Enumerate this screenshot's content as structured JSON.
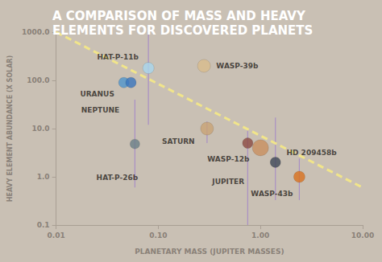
{
  "chart_data": {
    "type": "scatter",
    "title": "A COMPARISON OF MASS AND HEAVY\nELEMENTS FOR DISCOVERED PLANETS",
    "x_label": "PLANETARY MASS (JUPITER MASSES)",
    "y_label": "HEAVY ELEMENT ABUNDANCE (X SOLAR)",
    "log": true,
    "grid": false,
    "xlim": [
      0.01,
      10
    ],
    "ylim": [
      0.1,
      1000
    ],
    "xticks": [
      0.01,
      {
        "value": 0.1,
        "label": "0.10"
      },
      {
        "value": 1,
        "label": "1.00"
      },
      {
        "value": 10,
        "label": "10.00"
      }
    ],
    "yticks": [
      0.1,
      {
        "value": 1,
        "label": "1.0"
      },
      {
        "value": 10,
        "label": "10.0"
      },
      {
        "value": 100,
        "label": "100.0"
      },
      {
        "value": 1000,
        "label": "1000.0"
      }
    ],
    "points": [
      {
        "name": "HAT-P-11b",
        "x": 0.08,
        "y": 180,
        "color": "#a9d6ee",
        "error": [
          12,
          1000
        ]
      },
      {
        "name": "URANUS",
        "x": 0.046,
        "y": 90,
        "color": "#4f93cc"
      },
      {
        "name": "NEPTUNE",
        "x": 0.054,
        "y": 90,
        "color": "#3a74bd"
      },
      {
        "name": "HAT-P-26b",
        "x": 0.059,
        "y": 4.8,
        "color": "#6b7f88",
        "error": [
          0.6,
          40
        ]
      },
      {
        "name": "WASP-39b",
        "x": 0.28,
        "y": 200,
        "color": "#d9bb8c"
      },
      {
        "name": "SATURN",
        "x": 0.3,
        "y": 10,
        "color": "#c9a275",
        "error": [
          5,
          14
        ]
      },
      {
        "name": "WASP-12b",
        "x": 0.75,
        "y": 5,
        "color": "#8c4a42",
        "error": [
          0.1,
          10
        ]
      },
      {
        "name": "JUPITER",
        "x": 1,
        "y": 4,
        "color": "#c98f5f"
      },
      {
        "name": "HD 209458b",
        "x": 1.4,
        "y": 2,
        "color": "#3f4757",
        "error": [
          0.33,
          17
        ]
      },
      {
        "name": "WASP-43b",
        "x": 2.4,
        "y": 1,
        "color": "#d9701e",
        "error": [
          0.33,
          2.4
        ]
      }
    ],
    "trend_line": {
      "x": [
        0.01,
        10
      ],
      "values": [
        1000,
        0.6
      ],
      "color": "#f1e58a",
      "line_style": "dashed"
    }
  }
}
